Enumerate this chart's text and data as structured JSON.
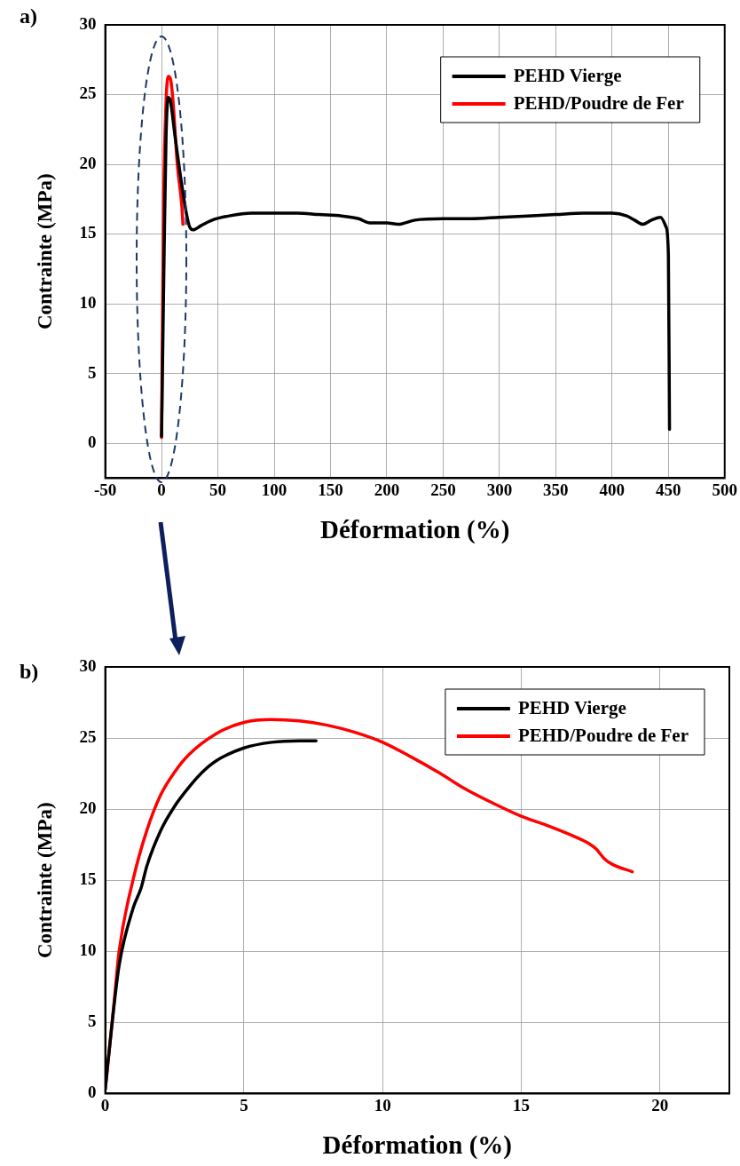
{
  "chart_data": [
    {
      "type": "line",
      "title": "a)",
      "xlabel": "Déformation (%)",
      "ylabel": "Contrainte (MPa)",
      "xlim": [
        -50,
        500
      ],
      "xticks": [
        -50,
        0,
        50,
        100,
        150,
        200,
        250,
        300,
        350,
        400,
        450,
        500
      ],
      "ylim": [
        -2.5,
        30
      ],
      "yticks": [
        0,
        5,
        10,
        15,
        20,
        25,
        30
      ],
      "grid": true,
      "legend": "top right",
      "marker": "none",
      "line_style": "solid",
      "series": [
        {
          "name": "PEHD Vierge",
          "color": "#000000",
          "x": [
            0,
            2,
            4,
            6,
            8,
            12,
            18,
            22,
            25,
            28,
            35,
            45,
            60,
            80,
            100,
            120,
            140,
            160,
            175,
            185,
            200,
            210,
            225,
            250,
            275,
            300,
            325,
            350,
            375,
            400,
            413,
            420,
            427,
            435,
            443,
            448,
            450,
            451
          ],
          "values": [
            0.5,
            12,
            22,
            24.8,
            24.5,
            22,
            18.5,
            16.5,
            15.5,
            15.3,
            15.6,
            16,
            16.3,
            16.5,
            16.5,
            16.5,
            16.4,
            16.3,
            16.1,
            15.8,
            15.8,
            15.7,
            16,
            16.1,
            16.1,
            16.2,
            16.3,
            16.4,
            16.5,
            16.5,
            16.3,
            16,
            15.7,
            16,
            16.2,
            15.5,
            13.5,
            1
          ]
        },
        {
          "name": "PEHD/Poudre de Fer",
          "color": "#ff0000",
          "x": [
            0,
            1,
            2,
            4,
            6,
            8,
            10,
            14,
            18,
            19
          ],
          "values": [
            0.4,
            10,
            18,
            24.5,
            26.3,
            26.1,
            24.7,
            20,
            17,
            15.7
          ]
        }
      ]
    },
    {
      "type": "line",
      "title": "b)",
      "xlabel": "Déformation (%)",
      "ylabel": "Contrainte (MPa)",
      "xlim": [
        0,
        22.5
      ],
      "xticks": [
        0,
        5,
        10,
        15,
        20
      ],
      "ylim": [
        0,
        30
      ],
      "yticks": [
        0,
        5,
        10,
        15,
        20,
        25,
        30
      ],
      "grid": true,
      "legend": "top right",
      "marker": "none",
      "line_style": "solid",
      "series": [
        {
          "name": "PEHD Vierge",
          "color": "#000000",
          "x": [
            0,
            0.25,
            0.5,
            1,
            1.3,
            1.5,
            2,
            2.5,
            3,
            3.5,
            4,
            5,
            6,
            7,
            7.6
          ],
          "values": [
            0.3,
            5,
            9,
            13,
            14.5,
            16,
            18.5,
            20.2,
            21.5,
            22.6,
            23.4,
            24.3,
            24.7,
            24.8,
            24.8
          ]
        },
        {
          "name": "PEHD/Poudre de Fer",
          "color": "#ff0000",
          "x": [
            0,
            0.3,
            0.5,
            1,
            1.5,
            2,
            2.5,
            3,
            4,
            5,
            6,
            7,
            8,
            9,
            10,
            11,
            12,
            13,
            14,
            15,
            16,
            17,
            17.5,
            17.7,
            18,
            18.3,
            19
          ],
          "values": [
            0.3,
            6,
            10,
            15,
            18.5,
            21,
            22.6,
            23.8,
            25.3,
            26.1,
            26.3,
            26.2,
            25.9,
            25.4,
            24.7,
            23.7,
            22.6,
            21.4,
            20.4,
            19.5,
            18.8,
            18,
            17.5,
            17.2,
            16.5,
            16.1,
            15.6
          ]
        }
      ]
    }
  ]
}
